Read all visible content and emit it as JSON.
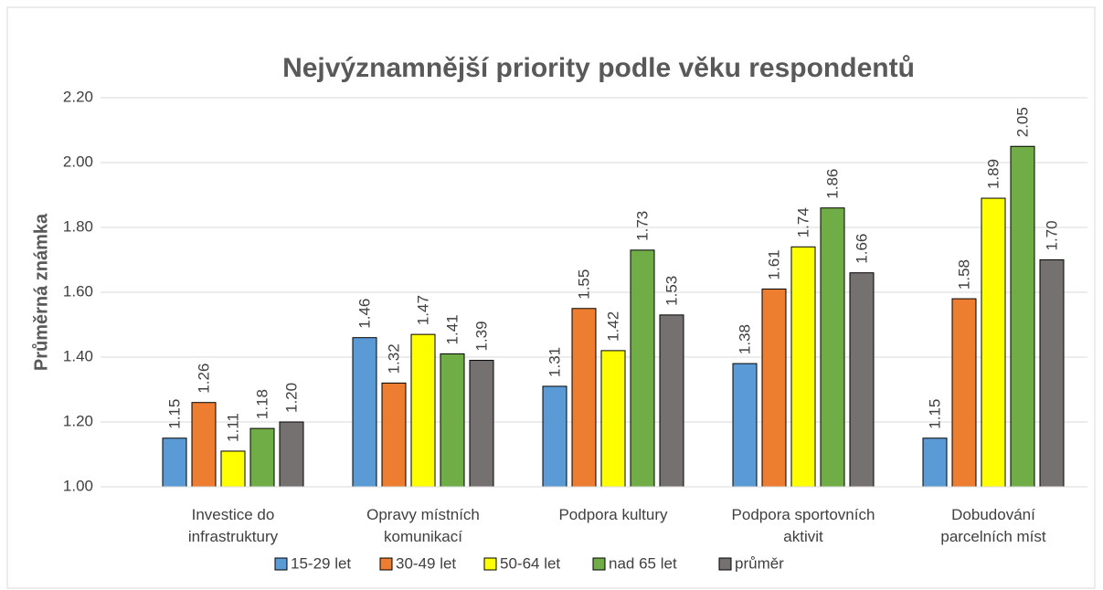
{
  "chart_data": {
    "type": "bar",
    "title": "Nejvýznamnější priority podle věku respondentů",
    "y_label": "Průměrná známka",
    "categories": [
      "Investice do\ninfrastruktury",
      "Opravy místních\nkomunikací",
      "Podpora kultury",
      "Podpora sportovních\naktivit",
      "Dobudování\nparcelních míst"
    ],
    "series": [
      {
        "name": "15-29 let",
        "color": "#5b9bd5",
        "values": [
          1.15,
          1.46,
          1.31,
          1.38,
          1.15
        ],
        "value_labels": [
          "1.15",
          "1.46",
          "1.31",
          "1.38",
          "1.15"
        ]
      },
      {
        "name": "30-49 let",
        "color": "#ed7d31",
        "values": [
          1.26,
          1.32,
          1.55,
          1.61,
          1.58
        ],
        "value_labels": [
          "1.26",
          "1.32",
          "1.55",
          "1.61",
          "1.58"
        ]
      },
      {
        "name": "50-64 let",
        "color": "#ffff00",
        "values": [
          1.11,
          1.47,
          1.42,
          1.74,
          1.89
        ],
        "value_labels": [
          "1.11",
          "1.47",
          "1.42",
          "1.74",
          "1.89"
        ]
      },
      {
        "name": "nad 65 let",
        "color": "#70ad47",
        "values": [
          1.18,
          1.41,
          1.73,
          1.86,
          2.05
        ],
        "value_labels": [
          "1.18",
          "1.41",
          "1.73",
          "1.86",
          "2.05"
        ]
      },
      {
        "name": "průměr",
        "color": "#767171",
        "values": [
          1.2,
          1.39,
          1.53,
          1.66,
          1.7
        ],
        "value_labels": [
          "1.20",
          "1.39",
          "1.53",
          "1.66",
          "1.70"
        ]
      }
    ],
    "ylim": [
      1,
      2.2
    ],
    "yticks": [
      {
        "value": 1,
        "label": "1.00"
      },
      {
        "value": 1.2,
        "label": "1.20"
      },
      {
        "value": 1.4,
        "label": "1.40"
      },
      {
        "value": 1.6,
        "label": "1.60"
      },
      {
        "value": 1.8,
        "label": "1.80"
      },
      {
        "value": 2,
        "label": "2.00"
      },
      {
        "value": 2.2,
        "label": "2.20"
      }
    ],
    "grid": true,
    "legend": "bottom"
  }
}
